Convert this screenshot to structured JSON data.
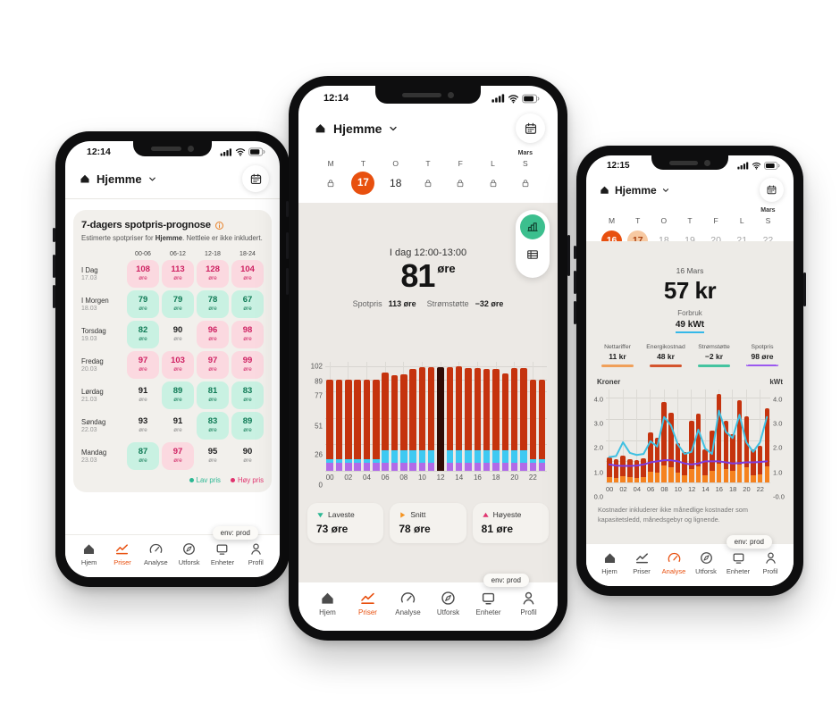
{
  "accent": "#e8500f",
  "env_badge": "env: prod",
  "nav_labels": [
    "Hjem",
    "Priser",
    "Analyse",
    "Utforsk",
    "Enheter",
    "Profil"
  ],
  "phones": {
    "left": {
      "status_time": "12:14",
      "header": {
        "title": "Hjemme"
      },
      "forecast_card": {
        "title": "7-dagers spotpris-prognose",
        "subtitle_pre": "Estimerte spotpriser for ",
        "subtitle_bold": "Hjemme",
        "subtitle_post": ". Nettleie er ikke inkludert.",
        "columns": [
          "00-06",
          "06-12",
          "12-18",
          "18-24"
        ],
        "unit": "øre",
        "rows": [
          {
            "day": "I Dag",
            "date": "17.03",
            "values": [
              {
                "v": "108",
                "t": "high"
              },
              {
                "v": "113",
                "t": "high"
              },
              {
                "v": "128",
                "t": "high"
              },
              {
                "v": "104",
                "t": "high"
              }
            ]
          },
          {
            "day": "I Morgen",
            "date": "18.03",
            "values": [
              {
                "v": "79",
                "t": "low"
              },
              {
                "v": "79",
                "t": "low"
              },
              {
                "v": "78",
                "t": "low"
              },
              {
                "v": "67",
                "t": "low"
              }
            ]
          },
          {
            "day": "Torsdag",
            "date": "19.03",
            "values": [
              {
                "v": "82",
                "t": "low"
              },
              {
                "v": "90",
                "t": "none"
              },
              {
                "v": "96",
                "t": "high"
              },
              {
                "v": "98",
                "t": "high"
              }
            ]
          },
          {
            "day": "Fredag",
            "date": "20.03",
            "values": [
              {
                "v": "97",
                "t": "high"
              },
              {
                "v": "103",
                "t": "high"
              },
              {
                "v": "97",
                "t": "high"
              },
              {
                "v": "99",
                "t": "high"
              }
            ]
          },
          {
            "day": "Lørdag",
            "date": "21.03",
            "values": [
              {
                "v": "91",
                "t": "none"
              },
              {
                "v": "89",
                "t": "low"
              },
              {
                "v": "81",
                "t": "low"
              },
              {
                "v": "83",
                "t": "low"
              }
            ]
          },
          {
            "day": "Søndag",
            "date": "22.03",
            "values": [
              {
                "v": "93",
                "t": "none"
              },
              {
                "v": "91",
                "t": "none"
              },
              {
                "v": "83",
                "t": "low"
              },
              {
                "v": "89",
                "t": "low"
              }
            ]
          },
          {
            "day": "Mandag",
            "date": "23.03",
            "values": [
              {
                "v": "87",
                "t": "low"
              },
              {
                "v": "97",
                "t": "high"
              },
              {
                "v": "95",
                "t": "none"
              },
              {
                "v": "90",
                "t": "none"
              }
            ]
          }
        ],
        "legend": [
          {
            "label": "Lav pris",
            "color": "#2bb793"
          },
          {
            "label": "Høy pris",
            "color": "#e0336e"
          }
        ]
      },
      "nav": {
        "active": "Priser"
      }
    },
    "middle": {
      "status_time": "12:14",
      "header": {
        "title": "Hjemme"
      },
      "week": [
        {
          "letter": "M",
          "kind": "lock"
        },
        {
          "letter": "T",
          "kind": "selected",
          "value": "17"
        },
        {
          "letter": "O",
          "kind": "plain",
          "value": "18"
        },
        {
          "letter": "T",
          "kind": "lock"
        },
        {
          "letter": "F",
          "kind": "lock"
        },
        {
          "letter": "L",
          "kind": "lock"
        },
        {
          "letter": "S",
          "kind": "lock",
          "month": "Mars"
        }
      ],
      "summary": {
        "period": "I dag 12:00-13:00",
        "price": "81",
        "unit": "øre",
        "spot_label": "Spotpris",
        "spot_value": "113 øre",
        "support_label": "Strømstøtte",
        "support_value": "−32 øre"
      },
      "stat_cards": [
        {
          "label": "Laveste",
          "value": "73 øre",
          "dir": "down",
          "color": "#2bb793"
        },
        {
          "label": "Snitt",
          "value": "78 øre",
          "dir": "right",
          "color": "#f5921f"
        },
        {
          "label": "Høyeste",
          "value": "81 øre",
          "dir": "up",
          "color": "#e0336e"
        }
      ],
      "nav": {
        "active": "Priser"
      }
    },
    "right": {
      "status_time": "12:15",
      "header": {
        "title": "Hjemme"
      },
      "week": [
        {
          "letter": "M",
          "kind": "selected",
          "value": "16"
        },
        {
          "letter": "T",
          "kind": "secondary",
          "value": "17"
        },
        {
          "letter": "O",
          "kind": "muted",
          "value": "18"
        },
        {
          "letter": "T",
          "kind": "muted",
          "value": "19"
        },
        {
          "letter": "F",
          "kind": "muted",
          "value": "20"
        },
        {
          "letter": "L",
          "kind": "muted",
          "value": "21"
        },
        {
          "letter": "S",
          "kind": "muted",
          "value": "22",
          "month": "Mars"
        }
      ],
      "summary": {
        "date_label": "16 Mars",
        "total": "57 kr",
        "forbruk_label": "Forbruk",
        "forbruk_value": "49 kWt"
      },
      "cost_columns": [
        {
          "label": "Nettariffer",
          "value": "11 kr",
          "color": "#f0a05a",
          "style": "solid"
        },
        {
          "label": "Energikostnad",
          "value": "48 kr",
          "color": "#d4552e",
          "style": "solid"
        },
        {
          "label": "Strømstøtte",
          "value": "−2 kr",
          "color": "#45c4a0",
          "style": "solid"
        },
        {
          "label": "Spotpris",
          "value": "98 øre",
          "color": "#9b59f0",
          "style": "dashed"
        }
      ],
      "chart_captions": {
        "left": "Kroner",
        "right": "kWt"
      },
      "disclaimer": "Kostnader inkluderer ikke månedlige kostnader som kapasitetsledd, månedsgebyr og lignende.",
      "nav": {
        "active": "Analyse"
      }
    }
  },
  "chart_data": [
    {
      "phone": "middle",
      "type": "bar",
      "stacked": true,
      "ymax": 106,
      "yticks": [
        102,
        89,
        77,
        51,
        26,
        0
      ],
      "x_tick_labels": [
        "00",
        "02",
        "04",
        "06",
        "08",
        "10",
        "12",
        "14",
        "16",
        "18",
        "20",
        "22"
      ],
      "highlight_index": 12,
      "highlight_color": "#2f0b05",
      "colors": {
        "red": "#c5330e",
        "cyan": "#3ec9f2",
        "purple": "#b16ae8"
      },
      "purple_base": 8,
      "cyan": [
        3,
        3,
        3,
        3,
        3,
        3,
        12,
        12,
        12,
        12,
        12,
        12,
        12,
        12,
        12,
        12,
        12,
        12,
        12,
        12,
        12,
        12,
        3,
        3
      ],
      "totals": [
        89,
        89,
        89,
        89,
        89,
        89,
        96,
        93,
        94,
        99,
        101,
        101,
        101,
        101,
        102,
        100,
        100,
        99,
        99,
        95,
        100,
        100,
        89,
        89
      ]
    },
    {
      "phone": "right",
      "type": "bar+line",
      "stacked": true,
      "ymax": 4.4,
      "yticks_left": [
        "4.0",
        "3.0",
        "2.0",
        "1.0",
        "0.0"
      ],
      "yticks_right": [
        "4.0",
        "3.0",
        "2.0",
        "1.0",
        "-0.0"
      ],
      "ytick_values": [
        4,
        3,
        2,
        1,
        0
      ],
      "ylabel_left": "Kroner",
      "ylabel_right": "kWt",
      "x_tick_labels": [
        "00",
        "02",
        "04",
        "06",
        "08",
        "10",
        "12",
        "14",
        "16",
        "18",
        "20",
        "22"
      ],
      "colors": {
        "red": "#c5330e",
        "orange": "#f5821f",
        "kwt_line": "#3fc0e2",
        "spot_line": "#7d3be0"
      },
      "bars_total": [
        1.2,
        1.1,
        1.25,
        1.1,
        1.05,
        1.15,
        2.35,
        2.1,
        3.8,
        3.3,
        1.85,
        1.45,
        2.9,
        3.25,
        1.55,
        2.45,
        4.2,
        2.9,
        2.3,
        3.9,
        3.15,
        1.55,
        1.75,
        3.5
      ],
      "bars_orange": [
        0.25,
        0.2,
        0.3,
        0.25,
        0.2,
        0.25,
        0.5,
        0.45,
        0.8,
        0.7,
        0.45,
        0.35,
        0.65,
        0.75,
        0.35,
        0.55,
        0.9,
        0.65,
        0.55,
        0.85,
        0.7,
        0.35,
        0.4,
        0.75
      ],
      "line_kwt": [
        1.2,
        1.25,
        1.9,
        1.4,
        1.3,
        1.35,
        1.95,
        1.7,
        3.1,
        2.7,
        1.8,
        1.35,
        1.45,
        2.5,
        1.6,
        1.35,
        3.4,
        2.4,
        2.1,
        3.2,
        1.9,
        1.45,
        1.9,
        3.1
      ],
      "line_spot": [
        0.85,
        0.8,
        0.78,
        0.78,
        0.8,
        0.85,
        0.95,
        1.0,
        1.05,
        1.05,
        1.0,
        0.9,
        0.85,
        0.9,
        1.0,
        1.0,
        1.0,
        0.95,
        0.9,
        0.92,
        0.95,
        0.95,
        0.97,
        1.0
      ]
    }
  ]
}
